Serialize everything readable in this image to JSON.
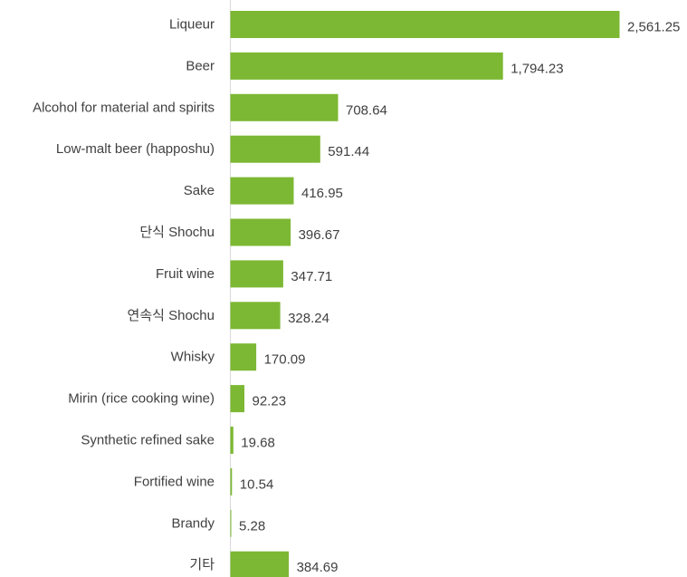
{
  "chart_data": {
    "type": "bar",
    "orientation": "horizontal",
    "categories": [
      "Liqueur",
      "Beer",
      "Alcohol for material and spirits",
      "Low-malt beer (happoshu)",
      "Sake",
      "단식 Shochu",
      "Fruit wine",
      "연속식 Shochu",
      "Whisky",
      "Mirin (rice cooking wine)",
      "Synthetic refined sake",
      "Fortified wine",
      "Brandy",
      "기타"
    ],
    "values": [
      2561.25,
      1794.23,
      708.64,
      591.44,
      416.95,
      396.67,
      347.71,
      328.24,
      170.09,
      92.23,
      19.68,
      10.54,
      5.28,
      384.69
    ],
    "value_labels": [
      "2,561.25",
      "1,794.23",
      "708.64",
      "591.44",
      "416.95",
      "396.67",
      "347.71",
      "328.24",
      "170.09",
      "92.23",
      "19.68",
      "10.54",
      "5.28",
      "384.69"
    ],
    "title": "",
    "xlabel": "",
    "ylabel": "",
    "xlim": [
      0,
      2561.25
    ],
    "grid": false,
    "legend": "none",
    "bar_color": "#7cb833",
    "axis_color": "#d9d9d9"
  }
}
